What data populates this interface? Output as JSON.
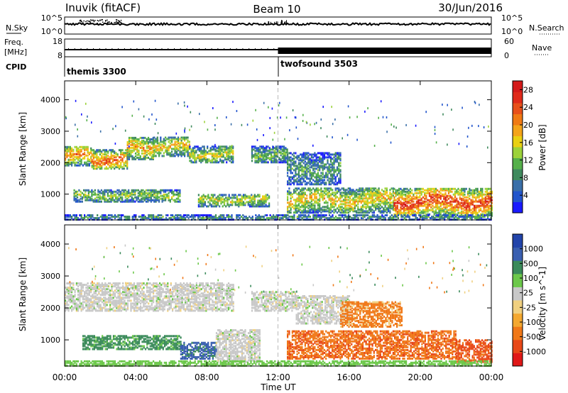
{
  "header": {
    "station": "Inuvik (fitACF)",
    "beam": "Beam 10",
    "date": "30/Jun/2016"
  },
  "top_panels": {
    "nsky_label": "N.Sky",
    "nsearch_label": "N.Search",
    "nsky_ticks": [
      "10^5",
      "10^0"
    ],
    "nsearch_ticks": [
      "10^5",
      "10^0"
    ],
    "freq_label": "Freq.",
    "freq_unit": "[MHz]",
    "freq_ticks": [
      "18",
      "8"
    ],
    "nave_label": "Nave",
    "nave_ticks": [
      "60",
      "0"
    ],
    "cpid_label": "CPID",
    "cpid_entries": [
      {
        "name": "themis 3300",
        "start_hour": 0
      },
      {
        "name": "twofsound 3503",
        "start_hour": 12
      }
    ]
  },
  "time_axis": {
    "label": "Time UT",
    "ticks": [
      "00:00",
      "04:00",
      "08:00",
      "12:00",
      "16:00",
      "20:00",
      "00:00"
    ],
    "range_hours": [
      0,
      24
    ]
  },
  "chart_data": [
    {
      "type": "heatmap",
      "name": "power",
      "ylabel": "Slant Range [km]",
      "yticks": [
        "1000",
        "2000",
        "3000",
        "4000"
      ],
      "ylim": [
        180,
        4600
      ],
      "xlim_hours": [
        0,
        24
      ],
      "colorbar": {
        "label": "Power [dB]",
        "ticks": [
          "4",
          "8",
          "12",
          "16",
          "20",
          "24",
          "28"
        ],
        "range": [
          0,
          30
        ],
        "colors": [
          "#1a1aff",
          "#2255cc",
          "#3a6fa8",
          "#3f8a5e",
          "#55b04a",
          "#9cd23a",
          "#e9d012",
          "#f4a41a",
          "#f07a14",
          "#e8501a",
          "#e02a1a",
          "#d41a1a"
        ]
      },
      "regions": [
        {
          "h0": 0.0,
          "h1": 1.5,
          "r0": 1900,
          "r1": 2500,
          "value": 22
        },
        {
          "h0": 1.5,
          "h1": 3.5,
          "r0": 1800,
          "r1": 2400,
          "value": 24
        },
        {
          "h0": 3.5,
          "h1": 5.0,
          "r0": 2100,
          "r1": 2800,
          "value": 20
        },
        {
          "h0": 5.0,
          "h1": 7.0,
          "r0": 2200,
          "r1": 2800,
          "value": 18
        },
        {
          "h0": 7.0,
          "h1": 9.5,
          "r0": 2000,
          "r1": 2500,
          "value": 16
        },
        {
          "h0": 10.5,
          "h1": 12.5,
          "r0": 2000,
          "r1": 2500,
          "value": 12
        },
        {
          "h0": 12.5,
          "h1": 15.5,
          "r0": 1300,
          "r1": 2300,
          "value": 10
        },
        {
          "h0": 0.5,
          "h1": 6.5,
          "r0": 750,
          "r1": 1150,
          "value": 14
        },
        {
          "h0": 7.5,
          "h1": 11.5,
          "r0": 600,
          "r1": 1000,
          "value": 16
        },
        {
          "h0": 12.5,
          "h1": 18.5,
          "r0": 400,
          "r1": 1200,
          "value": 18
        },
        {
          "h0": 18.5,
          "h1": 24.0,
          "r0": 300,
          "r1": 1200,
          "value": 26
        },
        {
          "h0": 0.0,
          "h1": 24.0,
          "r0": 180,
          "r1": 320,
          "value": 10
        }
      ]
    },
    {
      "type": "heatmap",
      "name": "velocity",
      "ylabel": "Slant Range [km]",
      "yticks": [
        "1000",
        "2000",
        "3000",
        "4000"
      ],
      "ylim": [
        180,
        4600
      ],
      "xlim_hours": [
        0,
        24
      ],
      "colorbar": {
        "label": "Velocity [m s^-1]",
        "ticks": [
          "1000",
          "500",
          "100",
          "25",
          "-25",
          "-100",
          "-500",
          "-1000"
        ],
        "colors": [
          "#2244aa",
          "#3a5fb0",
          "#3a8a5a",
          "#6cc84a",
          "#c8c8c8",
          "#f0d080",
          "#f4a830",
          "#f07818",
          "#e84818",
          "#e01818"
        ]
      },
      "regions": [
        {
          "h0": 0.0,
          "h1": 9.5,
          "r0": 1900,
          "r1": 2800,
          "value": 0
        },
        {
          "h0": 10.5,
          "h1": 13.0,
          "r0": 1900,
          "r1": 2500,
          "value": 0
        },
        {
          "h0": 13.0,
          "h1": 16.0,
          "r0": 1500,
          "r1": 2400,
          "value": 0
        },
        {
          "h0": 15.5,
          "h1": 19.0,
          "r0": 1400,
          "r1": 2200,
          "value": -150
        },
        {
          "h0": 1.0,
          "h1": 6.5,
          "r0": 700,
          "r1": 1150,
          "value": 150
        },
        {
          "h0": 6.5,
          "h1": 8.5,
          "r0": 400,
          "r1": 900,
          "value": 400
        },
        {
          "h0": 8.5,
          "h1": 11.0,
          "r0": 300,
          "r1": 1300,
          "value": 0
        },
        {
          "h0": 12.5,
          "h1": 22.0,
          "r0": 400,
          "r1": 1300,
          "value": -250
        },
        {
          "h0": 22.0,
          "h1": 24.0,
          "r0": 300,
          "r1": 1000,
          "value": -400
        },
        {
          "h0": 0.0,
          "h1": 24.0,
          "r0": 180,
          "r1": 330,
          "value": 60
        }
      ]
    }
  ]
}
